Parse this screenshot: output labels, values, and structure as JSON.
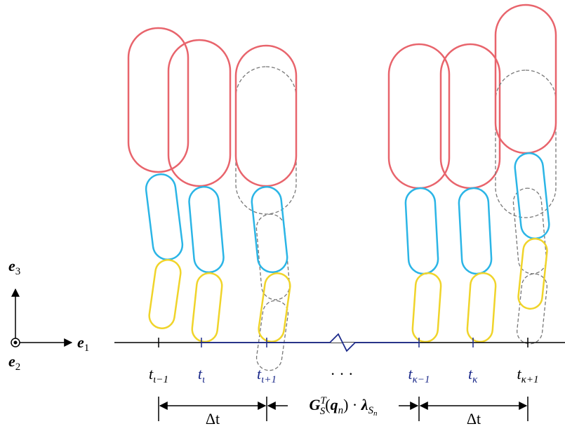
{
  "axes": [
    {
      "symbol": "e",
      "sub": "3"
    },
    {
      "symbol": "e",
      "sub": "1"
    },
    {
      "symbol": "e",
      "sub": "2"
    }
  ],
  "time_labels": [
    {
      "base": "t",
      "sub": "ι−1"
    },
    {
      "base": "t",
      "sub": "ι"
    },
    {
      "base": "t",
      "sub": "ι+1"
    },
    {
      "base": "t",
      "sub": "κ−1"
    },
    {
      "base": "t",
      "sub": "κ"
    },
    {
      "base": "t",
      "sub": "κ+1"
    }
  ],
  "ellipsis": "· · ·",
  "intervals": {
    "left": "Δt",
    "right": "Δt",
    "middle": [
      "G",
      "T",
      "S",
      "(",
      "q",
      "n",
      ") · ",
      "λ",
      "S",
      "n"
    ]
  }
}
